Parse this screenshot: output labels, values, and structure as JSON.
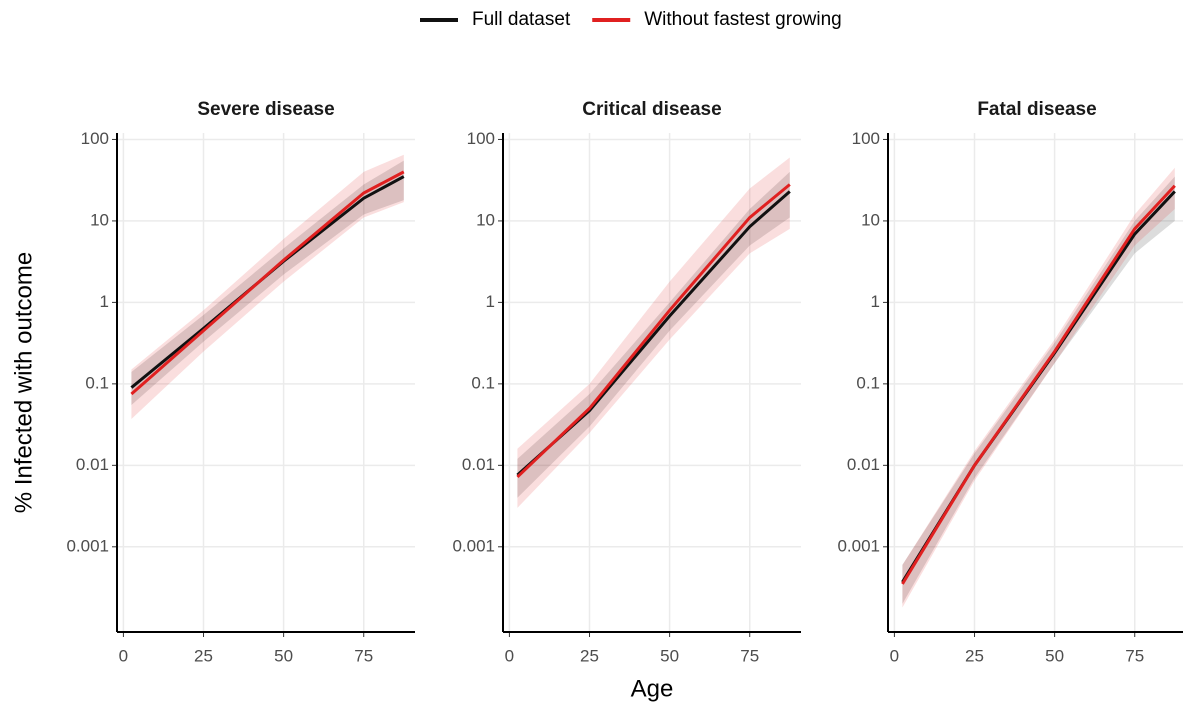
{
  "chart_data": [
    {
      "type": "line",
      "title": "Severe disease",
      "y_label": "% Infected with outcome",
      "legend": "top",
      "log_y": true,
      "grid": true,
      "x": [
        2.5,
        25,
        50,
        75,
        87.5
      ],
      "xlim": [
        -2,
        91
      ],
      "xticks": [
        0,
        25,
        50,
        75
      ],
      "ylim": [
        9e-05,
        120
      ],
      "yticks": [
        0.001,
        0.01,
        0.1,
        1,
        10,
        100
      ],
      "series": [
        {
          "name": "Full dataset",
          "color": "#111111",
          "values": [
            0.09,
            0.48,
            3.2,
            19,
            35
          ],
          "lower": [
            0.055,
            0.33,
            2.2,
            12,
            18
          ],
          "upper": [
            0.14,
            0.7,
            4.6,
            28,
            55
          ]
        },
        {
          "name": "Without fastest growing",
          "color": "#e02020",
          "values": [
            0.075,
            0.45,
            3.3,
            22,
            40
          ],
          "lower": [
            0.037,
            0.25,
            1.8,
            11,
            17
          ],
          "upper": [
            0.15,
            0.8,
            6,
            40,
            65
          ]
        }
      ]
    },
    {
      "type": "line",
      "title": "Critical disease",
      "x_label": "Age",
      "log_y": true,
      "grid": true,
      "x": [
        2.5,
        25,
        50,
        75,
        87.5
      ],
      "xlim": [
        -2,
        91
      ],
      "xticks": [
        0,
        25,
        50,
        75
      ],
      "ylim": [
        9e-05,
        120
      ],
      "yticks": [
        0.001,
        0.01,
        0.1,
        1,
        10,
        100
      ],
      "series": [
        {
          "color": "#111111",
          "values": [
            0.0076,
            0.047,
            0.68,
            8.5,
            23
          ],
          "lower": [
            0.004,
            0.03,
            0.45,
            5,
            11
          ],
          "upper": [
            0.012,
            0.075,
            1.0,
            14,
            40
          ]
        },
        {
          "color": "#e02020",
          "values": [
            0.0072,
            0.05,
            0.8,
            11,
            28
          ],
          "lower": [
            0.003,
            0.025,
            0.35,
            4,
            8
          ],
          "upper": [
            0.016,
            0.1,
            1.8,
            25,
            60
          ]
        }
      ]
    },
    {
      "type": "line",
      "title": "Fatal disease",
      "log_y": true,
      "grid": true,
      "x": [
        2.5,
        25,
        50,
        75,
        87.5
      ],
      "xlim": [
        -2,
        91
      ],
      "xticks": [
        0,
        25,
        50,
        75
      ],
      "ylim": [
        9e-05,
        120
      ],
      "yticks": [
        0.001,
        0.01,
        0.1,
        1,
        10,
        100
      ],
      "series": [
        {
          "color": "#111111",
          "values": [
            0.00037,
            0.01,
            0.24,
            6.9,
            23
          ],
          "lower": [
            0.0002,
            0.007,
            0.18,
            4,
            10
          ],
          "upper": [
            0.0006,
            0.014,
            0.32,
            10,
            35
          ]
        },
        {
          "color": "#e02020",
          "values": [
            0.00035,
            0.01,
            0.25,
            8,
            27
          ],
          "lower": [
            0.00018,
            0.0065,
            0.18,
            5,
            14
          ],
          "upper": [
            0.0006,
            0.015,
            0.35,
            12,
            45
          ]
        }
      ]
    }
  ]
}
